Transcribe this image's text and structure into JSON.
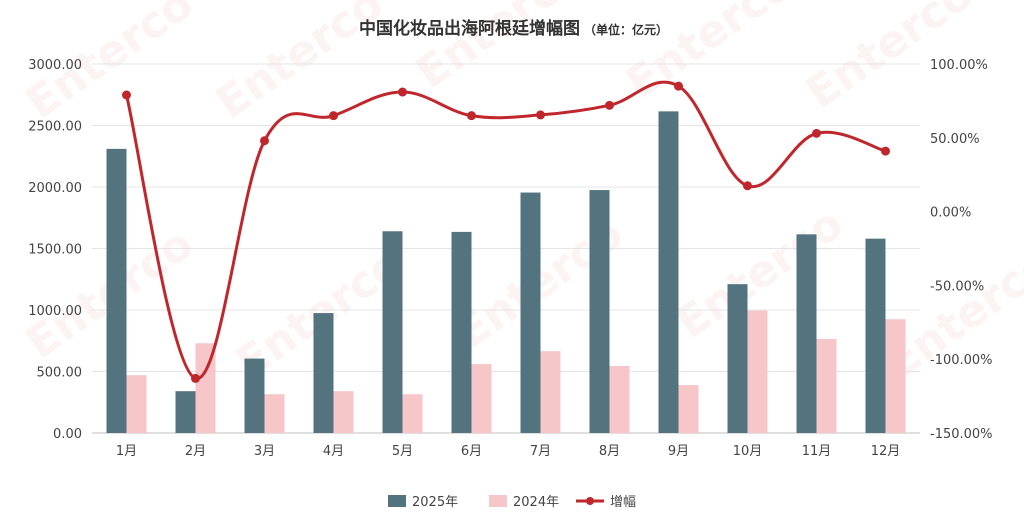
{
  "chart_data": {
    "type": "bar",
    "title": "中国化妆品出海阿根廷增幅图",
    "subtitle": "（单位：亿元）",
    "categories": [
      "1月",
      "2月",
      "3月",
      "4月",
      "5月",
      "6月",
      "7月",
      "8月",
      "9月",
      "10月",
      "11月",
      "12月"
    ],
    "series": [
      {
        "name": "2025年",
        "type": "bar",
        "axis": "left",
        "color": "#53737f",
        "values": [
          2310,
          340,
          605,
          975,
          1640,
          1635,
          1955,
          1975,
          2615,
          1210,
          1615,
          1580
        ]
      },
      {
        "name": "2024年",
        "type": "bar",
        "axis": "left",
        "color": "#f7c6c8",
        "values": [
          470,
          730,
          315,
          340,
          315,
          560,
          665,
          545,
          390,
          995,
          765,
          925
        ]
      },
      {
        "name": "增幅",
        "type": "line",
        "axis": "right",
        "color": "#c0272d",
        "unit": "%",
        "values": [
          79.0,
          -113.0,
          48.0,
          65.0,
          81.0,
          65.0,
          65.5,
          72.0,
          85.0,
          17.5,
          53.0,
          41.0
        ]
      }
    ],
    "y_left": {
      "lim": [
        0,
        3000
      ],
      "ticks": [
        "0.00",
        "500.00",
        "1000.00",
        "1500.00",
        "2000.00",
        "2500.00",
        "3000.00"
      ]
    },
    "y_right": {
      "lim": [
        -150,
        100
      ],
      "ticks": [
        "-150.00%",
        "-100.00%",
        "-50.00%",
        "0.00%",
        "50.00%",
        "100.00%"
      ]
    },
    "grid": true,
    "legend_position": "bottom-center",
    "watermark": "Enterco"
  }
}
